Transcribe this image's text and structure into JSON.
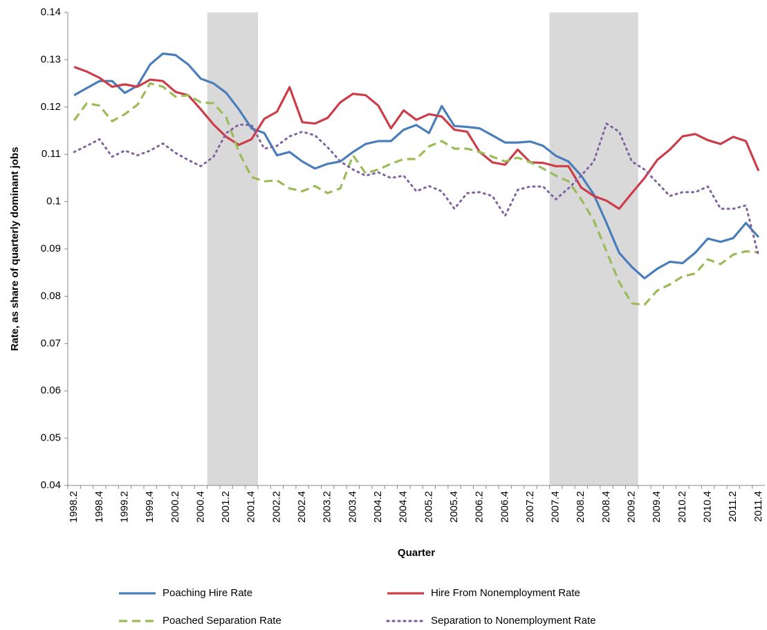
{
  "chart_data": {
    "type": "line",
    "ylabel": "Rate, as share of quarterly dominant jobs",
    "xlabel": "Quarter",
    "categories": [
      "1998.2",
      null,
      "1998.4",
      null,
      "1999.2",
      null,
      "1999.4",
      null,
      "2000.2",
      null,
      "2000.4",
      null,
      "2001.2",
      null,
      "2001.4",
      null,
      "2002.2",
      null,
      "2002.4",
      null,
      "2003.2",
      null,
      "2003.4",
      null,
      "2004.2",
      null,
      "2004.4",
      null,
      "2005.2",
      null,
      "2005.4",
      null,
      "2006.2",
      null,
      "2006.4",
      null,
      "2007.2",
      null,
      "2007.4",
      null,
      "2008.2",
      null,
      "2008.4",
      null,
      "2009.2",
      null,
      "2009.4",
      null,
      "2010.2",
      null,
      "2010.4",
      null,
      "2011.2",
      null,
      "2011.4"
    ],
    "shaded_ranges": [
      [
        11,
        14
      ],
      [
        38,
        44
      ]
    ],
    "shade_color": "#d9d9d9",
    "ylim": [
      0.04,
      0.14
    ],
    "yticks": [
      0.04,
      0.05,
      0.06,
      0.07,
      0.08,
      0.09,
      0.1,
      0.11,
      0.12,
      0.13,
      0.14
    ],
    "grid": false,
    "series": [
      {
        "name": "Poaching Hire Rate",
        "color": "#4a7ebb",
        "style": "solid",
        "values": [
          0.1225,
          0.124,
          0.1255,
          0.1255,
          0.123,
          0.1245,
          0.129,
          0.1313,
          0.131,
          0.129,
          0.126,
          0.125,
          0.123,
          0.1195,
          0.1155,
          0.1145,
          0.1098,
          0.1105,
          0.1085,
          0.107,
          0.108,
          0.1085,
          0.1105,
          0.1122,
          0.1128,
          0.1128,
          0.1152,
          0.1162,
          0.1145,
          0.1202,
          0.116,
          0.1158,
          0.1155,
          0.114,
          0.1125,
          0.1125,
          0.1127,
          0.1118,
          0.1097,
          0.1085,
          0.1055,
          0.1015,
          0.0955,
          0.0892,
          0.0862,
          0.0838,
          0.0858,
          0.0873,
          0.087,
          0.0892,
          0.0922,
          0.0915,
          0.0923,
          0.0955,
          0.0925
        ]
      },
      {
        "name": "Hire From Nonemployment Rate",
        "color": "#cc3d4a",
        "style": "solid",
        "values": [
          0.1285,
          0.1275,
          0.1262,
          0.1243,
          0.1248,
          0.1243,
          0.1258,
          0.1255,
          0.1232,
          0.1225,
          0.1195,
          0.1163,
          0.1137,
          0.112,
          0.1132,
          0.1175,
          0.119,
          0.1242,
          0.1168,
          0.1165,
          0.1177,
          0.121,
          0.1228,
          0.1225,
          0.1203,
          0.1155,
          0.1193,
          0.1173,
          0.1185,
          0.118,
          0.1152,
          0.1148,
          0.1105,
          0.1083,
          0.1078,
          0.111,
          0.1083,
          0.1082,
          0.1075,
          0.1075,
          0.103,
          0.1012,
          0.1002,
          0.0985,
          0.1018,
          0.105,
          0.1088,
          0.111,
          0.1138,
          0.1143,
          0.113,
          0.1122,
          0.1137,
          0.1128,
          0.1065
        ]
      },
      {
        "name": "Poached Separation Rate",
        "color": "#9bbb59",
        "style": "dashed",
        "values": [
          0.1172,
          0.1208,
          0.1203,
          0.117,
          0.1185,
          0.1205,
          0.125,
          0.1243,
          0.1222,
          0.1225,
          0.121,
          0.1208,
          0.1178,
          0.1105,
          0.1052,
          0.1043,
          0.1045,
          0.1028,
          0.1022,
          0.1033,
          0.1018,
          0.1028,
          0.1098,
          0.106,
          0.1068,
          0.108,
          0.109,
          0.109,
          0.1117,
          0.1128,
          0.1112,
          0.1112,
          0.1105,
          0.1095,
          0.1085,
          0.1093,
          0.1083,
          0.107,
          0.1055,
          0.1043,
          0.1005,
          0.096,
          0.0895,
          0.083,
          0.0785,
          0.0782,
          0.0812,
          0.0825,
          0.0842,
          0.0848,
          0.0878,
          0.0868,
          0.0888,
          0.0895,
          0.0893
        ]
      },
      {
        "name": "Separation to Nonemployment Rate",
        "color": "#8064a2",
        "style": "dotted",
        "values": [
          0.1105,
          0.1118,
          0.1132,
          0.1095,
          0.1108,
          0.1098,
          0.1108,
          0.1123,
          0.1103,
          0.1088,
          0.1075,
          0.1095,
          0.1145,
          0.1163,
          0.1162,
          0.1112,
          0.1118,
          0.1138,
          0.1148,
          0.114,
          0.1115,
          0.1085,
          0.1068,
          0.1055,
          0.1062,
          0.105,
          0.1055,
          0.1022,
          0.1033,
          0.1022,
          0.0985,
          0.1018,
          0.102,
          0.1012,
          0.097,
          0.1025,
          0.1032,
          0.1032,
          0.1005,
          0.1028,
          0.1055,
          0.1085,
          0.1165,
          0.1148,
          0.1085,
          0.1068,
          0.104,
          0.1012,
          0.102,
          0.102,
          0.1032,
          0.0985,
          0.0985,
          0.0992,
          0.0885
        ]
      }
    ]
  }
}
